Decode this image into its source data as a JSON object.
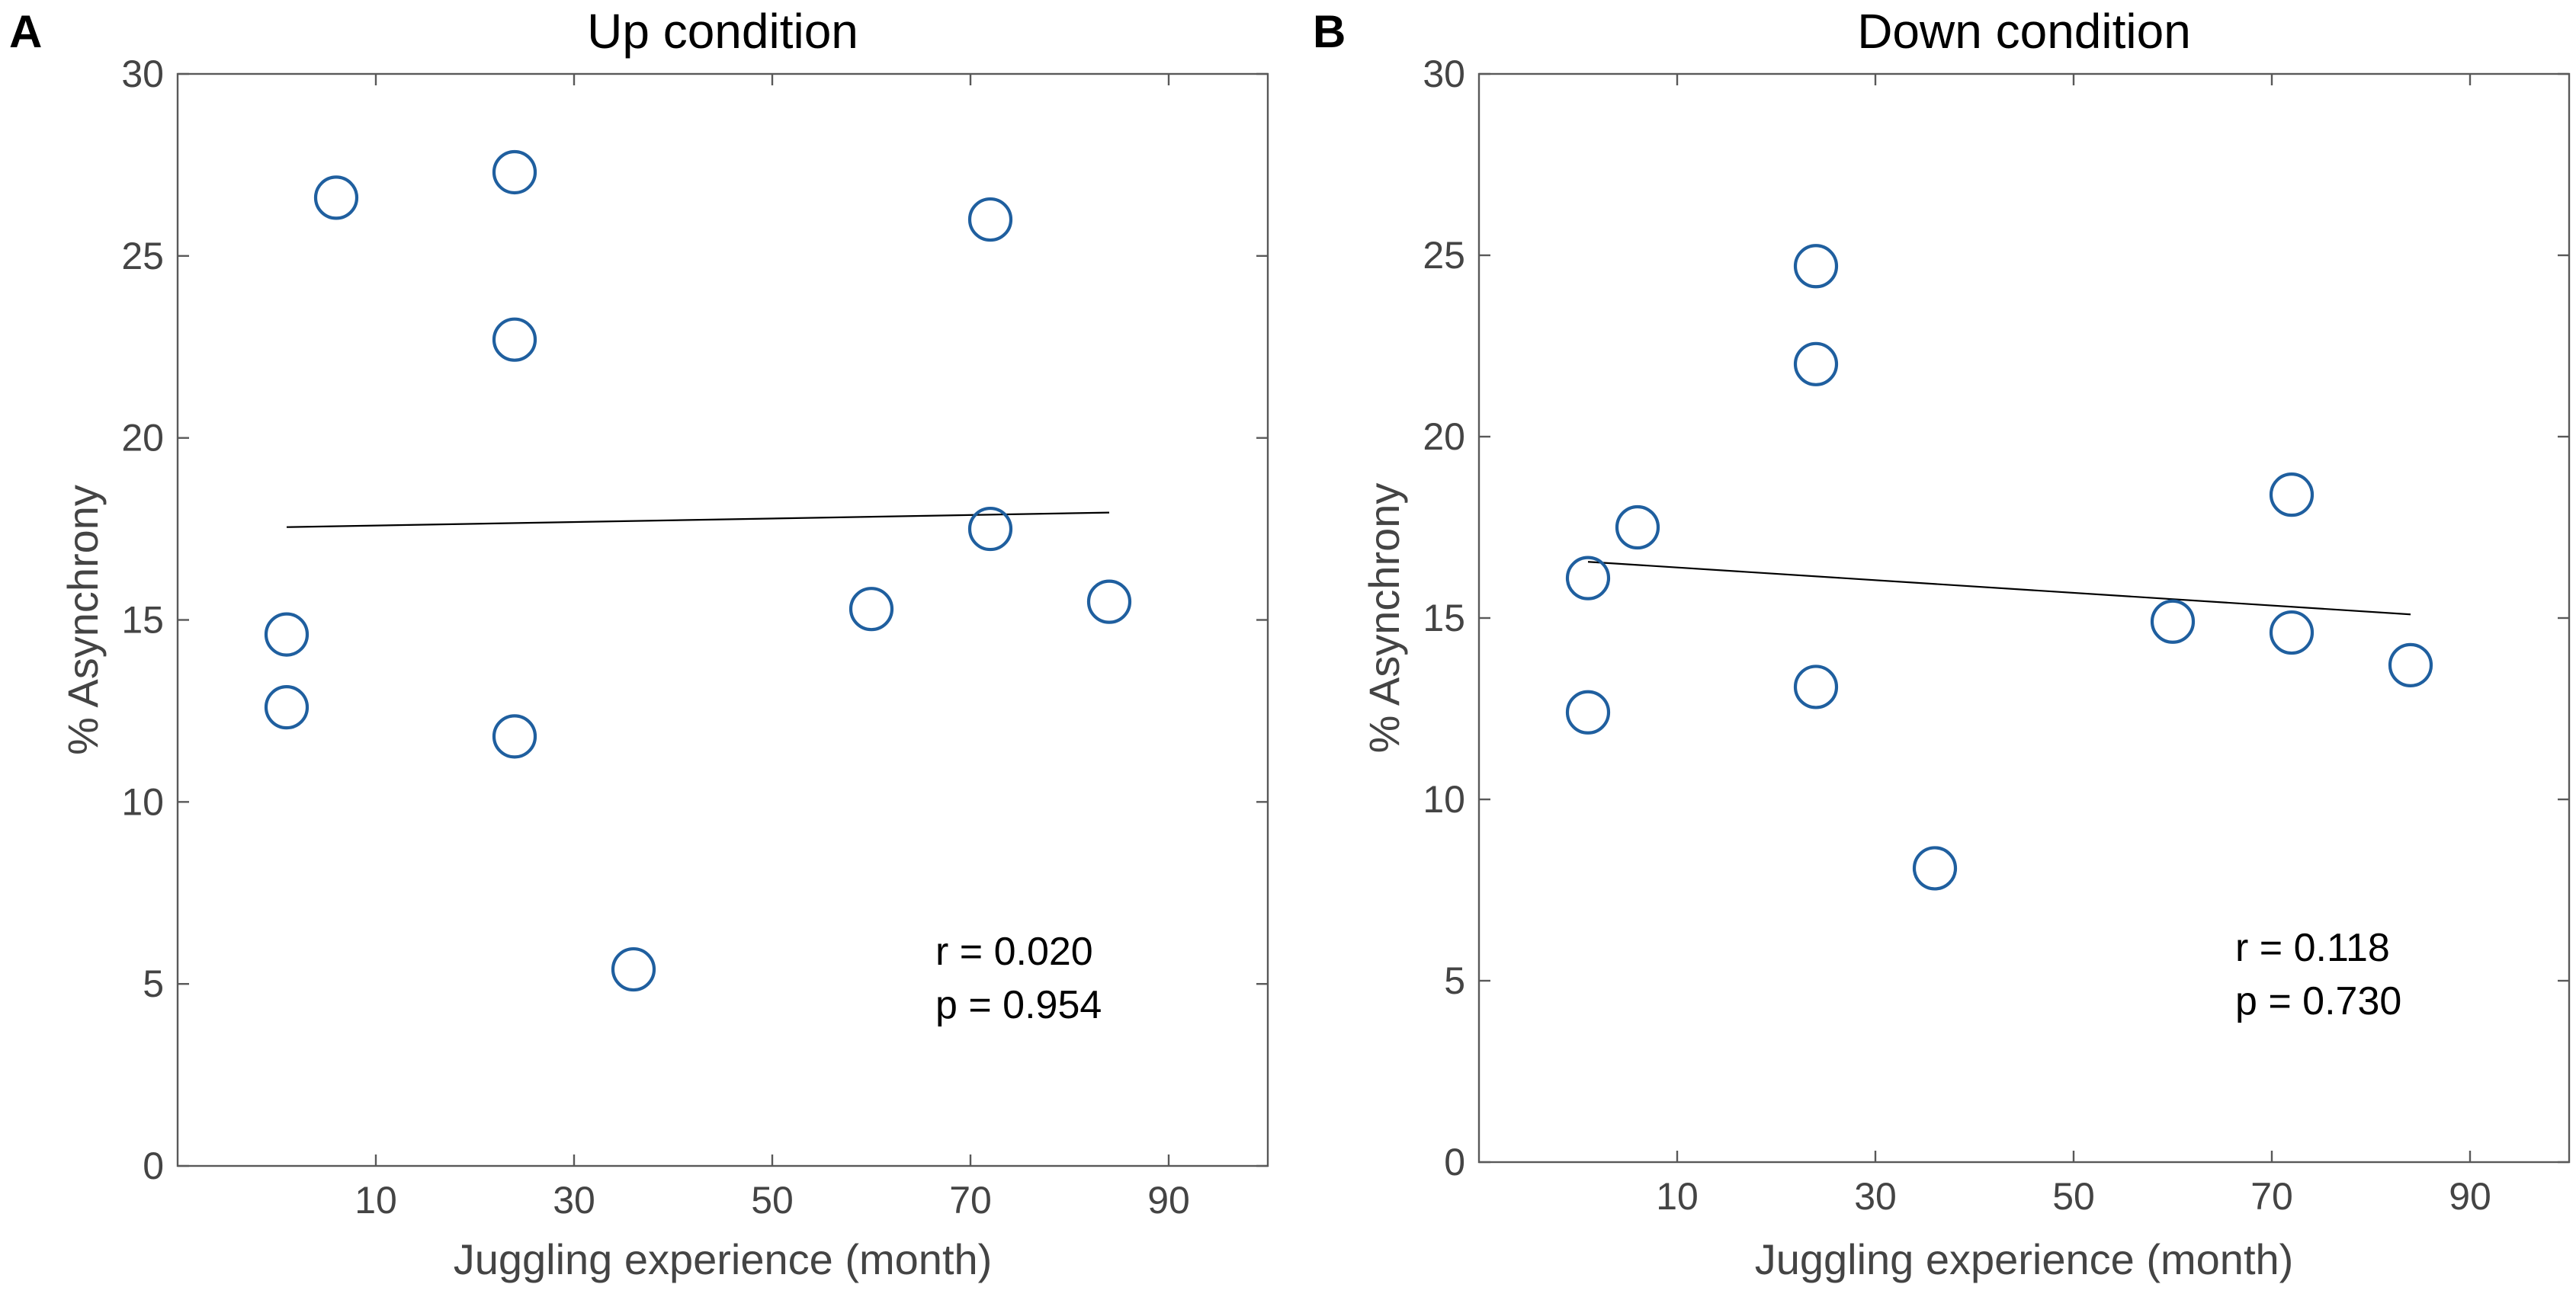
{
  "chart_data": [
    {
      "type": "scatter",
      "panel_label": "A",
      "title": "Up condition",
      "xlabel": "Juggling experience (month)",
      "ylabel": "% Asynchrony",
      "xlim": [
        -10,
        100
      ],
      "ylim": [
        0,
        30
      ],
      "xticks": [
        10,
        30,
        50,
        70,
        90
      ],
      "yticks": [
        0,
        5,
        10,
        15,
        20,
        25,
        30
      ],
      "marker_color": "#1f5f9f",
      "line_color": "#000000",
      "series": [
        {
          "name": "participants",
          "points": [
            {
              "x": 6,
              "y": 26.6
            },
            {
              "x": 24,
              "y": 27.3
            },
            {
              "x": 24,
              "y": 22.7
            },
            {
              "x": 72,
              "y": 26.0
            },
            {
              "x": 72,
              "y": 17.5
            },
            {
              "x": 1,
              "y": 14.6
            },
            {
              "x": 1,
              "y": 12.6
            },
            {
              "x": 24,
              "y": 11.8
            },
            {
              "x": 60,
              "y": 15.3
            },
            {
              "x": 84,
              "y": 15.5
            },
            {
              "x": 36,
              "y": 5.4
            }
          ]
        }
      ],
      "fit_line": {
        "x": [
          1,
          84
        ],
        "y": [
          17.55,
          17.95
        ]
      },
      "annotation": {
        "r": "r = 0.020",
        "p": "p = 0.954"
      }
    },
    {
      "type": "scatter",
      "panel_label": "B",
      "title": "Down condition",
      "xlabel": "Juggling experience (month)",
      "ylabel": "% Asynchrony",
      "xlim": [
        -10,
        100
      ],
      "ylim": [
        0,
        30
      ],
      "xticks": [
        10,
        30,
        50,
        70,
        90
      ],
      "yticks": [
        0,
        5,
        10,
        15,
        20,
        25,
        30
      ],
      "marker_color": "#1f5f9f",
      "line_color": "#000000",
      "series": [
        {
          "name": "participants",
          "points": [
            {
              "x": 24,
              "y": 24.7
            },
            {
              "x": 24,
              "y": 22.0
            },
            {
              "x": 6,
              "y": 17.5
            },
            {
              "x": 1,
              "y": 16.1
            },
            {
              "x": 1,
              "y": 12.4
            },
            {
              "x": 24,
              "y": 13.1
            },
            {
              "x": 36,
              "y": 8.1
            },
            {
              "x": 72,
              "y": 18.4
            },
            {
              "x": 60,
              "y": 14.9
            },
            {
              "x": 72,
              "y": 14.6
            },
            {
              "x": 84,
              "y": 13.7
            }
          ]
        }
      ],
      "fit_line": {
        "x": [
          1,
          84
        ],
        "y": [
          16.55,
          15.1
        ]
      },
      "annotation": {
        "r": "r = 0.118",
        "p": "p = 0.730"
      }
    }
  ]
}
